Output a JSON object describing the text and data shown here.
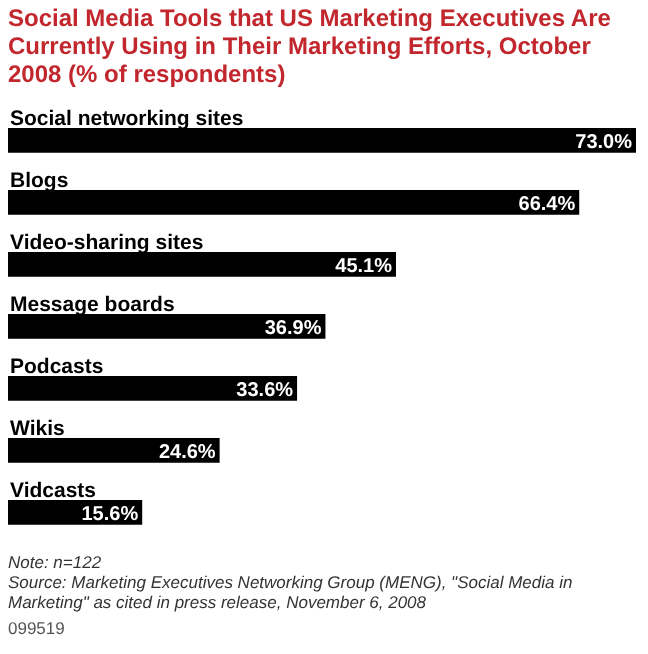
{
  "chart_data": {
    "type": "bar",
    "orientation": "horizontal",
    "title": "Social Media Tools that US Marketing Executives Are Currently Using in Their Marketing Efforts, October 2008 (% of respondents)",
    "categories": [
      "Social networking sites",
      "Blogs",
      "Video-sharing sites",
      "Message boards",
      "Podcasts",
      "Wikis",
      "Vidcasts"
    ],
    "values": [
      73.0,
      66.4,
      45.1,
      36.9,
      33.6,
      24.6,
      15.6
    ],
    "value_labels": [
      "73.0%",
      "66.4%",
      "45.1%",
      "36.9%",
      "33.6%",
      "24.6%",
      "15.6%"
    ],
    "color": "#000000",
    "annotations": [
      "Note: n=122",
      "Source: Marketing Executives Networking Group (MENG), \"Social Media in Marketing\" as cited in press release, November 6, 2008",
      "099519"
    ]
  }
}
